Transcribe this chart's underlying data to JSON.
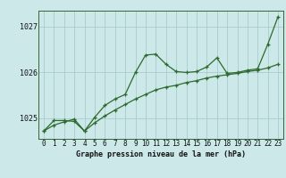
{
  "title": "Graphe pression niveau de la mer (hPa)",
  "bg_color": "#cce8e8",
  "grid_color": "#aacccc",
  "line_color": "#2d6a2d",
  "x_labels": [
    "0",
    "1",
    "2",
    "3",
    "4",
    "5",
    "6",
    "7",
    "8",
    "9",
    "10",
    "11",
    "12",
    "13",
    "14",
    "15",
    "16",
    "17",
    "18",
    "19",
    "20",
    "21",
    "22",
    "23"
  ],
  "y_ticks": [
    1025,
    1026,
    1027
  ],
  "ylim": [
    1024.55,
    1027.35
  ],
  "xlim": [
    -0.5,
    23.5
  ],
  "line1_y": [
    1024.72,
    1024.95,
    1024.95,
    1024.93,
    1024.72,
    1025.02,
    1025.28,
    1025.42,
    1025.52,
    1026.0,
    1026.38,
    1026.4,
    1026.18,
    1026.02,
    1026.0,
    1026.02,
    1026.12,
    1026.32,
    1025.98,
    1026.0,
    1026.05,
    1026.08,
    1026.62,
    1027.22
  ],
  "line2_y": [
    1024.72,
    1024.85,
    1024.92,
    1024.98,
    1024.72,
    1024.9,
    1025.05,
    1025.18,
    1025.3,
    1025.42,
    1025.52,
    1025.62,
    1025.68,
    1025.72,
    1025.78,
    1025.82,
    1025.88,
    1025.92,
    1025.95,
    1025.98,
    1026.02,
    1026.05,
    1026.1,
    1026.18
  ],
  "title_fontsize": 6.0,
  "tick_fontsize": 5.5,
  "ytick_fontsize": 6.0
}
